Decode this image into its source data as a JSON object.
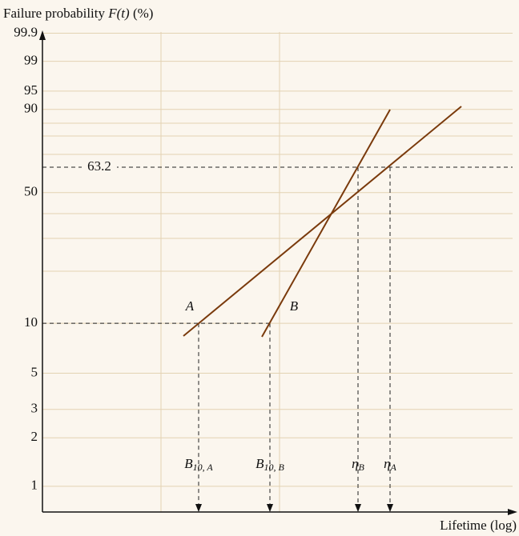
{
  "y_axis": {
    "title": {
      "text": "Failure probability ",
      "variable": "F(t)",
      "unit": " (%)"
    },
    "ticks": [
      99.9,
      99,
      95,
      90,
      50,
      10,
      5,
      3,
      2,
      1
    ]
  },
  "x_axis": {
    "title": "Lifetime (log)"
  },
  "characteristic_level": 63.2,
  "b10_level": 10,
  "curves": [
    "A",
    "B"
  ],
  "markers": [
    {
      "symbol": "B",
      "subscript": "10, A"
    },
    {
      "symbol": "B",
      "subscript": "10, B"
    },
    {
      "symbol": "η",
      "subscript": "B"
    },
    {
      "symbol": "η",
      "subscript": "A"
    }
  ]
}
